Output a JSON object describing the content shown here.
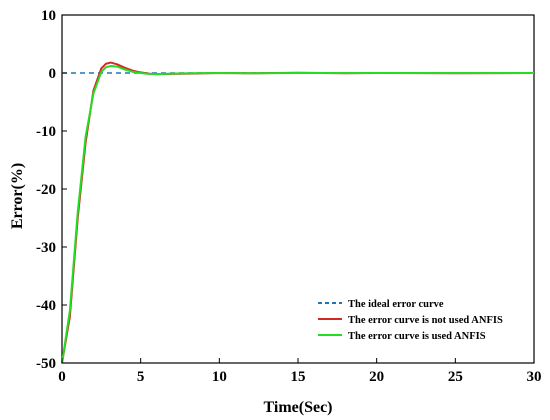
{
  "chart_data": {
    "type": "line",
    "title": "",
    "xlabel": "Time(Sec)",
    "ylabel": "Error(%)",
    "xlim": [
      0,
      30
    ],
    "ylim": [
      -50,
      10
    ],
    "xticks": [
      0,
      5,
      10,
      15,
      20,
      25,
      30
    ],
    "yticks": [
      -50,
      -40,
      -30,
      -20,
      -10,
      0,
      10
    ],
    "grid": false,
    "legend_position": "bottom-right",
    "series": [
      {
        "name": "The ideal error curve",
        "color": "#1f77b4",
        "style": "dashed",
        "x": [
          0,
          30
        ],
        "y": [
          0,
          0
        ]
      },
      {
        "name": "The error curve is not used ANFIS",
        "color": "#d62728",
        "style": "solid",
        "x": [
          0,
          0.5,
          1.0,
          1.5,
          2.0,
          2.5,
          2.8,
          3.1,
          3.5,
          4.0,
          4.5,
          5.0,
          5.5,
          6.0,
          7.0,
          8.0,
          10.0,
          12.0,
          15.0,
          18.0,
          20.0,
          25.0,
          30.0
        ],
        "y": [
          -50,
          -42,
          -25,
          -12,
          -3,
          0.8,
          1.6,
          1.8,
          1.5,
          0.9,
          0.4,
          0.1,
          -0.1,
          -0.2,
          -0.15,
          -0.1,
          0.0,
          -0.05,
          0.05,
          -0.05,
          0.0,
          -0.05,
          0.0
        ]
      },
      {
        "name": "The error curve is used ANFIS",
        "color": "#22dd22",
        "style": "solid",
        "x": [
          0,
          0.5,
          1.0,
          1.5,
          2.0,
          2.5,
          2.8,
          3.1,
          3.5,
          4.0,
          4.5,
          5.0,
          5.5,
          6.0,
          7.0,
          8.0,
          10.0,
          12.0,
          15.0,
          18.0,
          20.0,
          25.0,
          30.0
        ],
        "y": [
          -50,
          -41,
          -24,
          -11,
          -3.5,
          0.2,
          1.0,
          1.2,
          1.1,
          0.6,
          0.2,
          0.0,
          -0.15,
          -0.2,
          -0.1,
          -0.05,
          0.0,
          -0.05,
          0.0,
          0.0,
          0.0,
          0.0,
          0.0
        ]
      }
    ]
  }
}
